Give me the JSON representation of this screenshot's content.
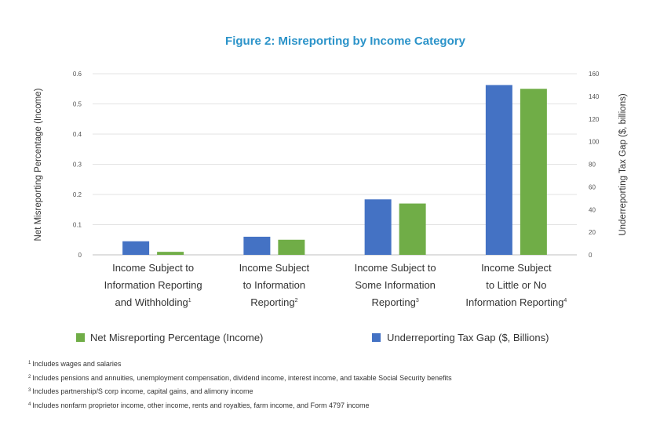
{
  "chart_data": {
    "type": "bar",
    "title": "Figure 2: Misreporting by Income Category",
    "categories": [
      {
        "lines": [
          "Income Subject to",
          "Information Reporting",
          "and Withholding"
        ],
        "note": "1"
      },
      {
        "lines": [
          "Income Subject",
          "to Information",
          "Reporting"
        ],
        "note": "2"
      },
      {
        "lines": [
          "Income Subject to",
          "Some Information",
          "Reporting"
        ],
        "note": "3"
      },
      {
        "lines": [
          "Income Subject",
          "to Little or No",
          "Information Reporting"
        ],
        "note": "4"
      }
    ],
    "series": [
      {
        "name": "Underreporting Tax Gap ($, Billions)",
        "axis": "right",
        "color": "#4472c4",
        "values": [
          12,
          16,
          49,
          150
        ]
      },
      {
        "name": "Net Misreporting Percentage (Income)",
        "axis": "left",
        "color": "#70ad47",
        "values": [
          0.01,
          0.05,
          0.17,
          0.55
        ]
      }
    ],
    "ylabel": "Net Misreporting Percentage (Income)",
    "ylim": [
      0,
      0.6
    ],
    "yticks": [
      "0",
      "0.1",
      "0.2",
      "0.3",
      "0.4",
      "0.5",
      "0.6"
    ],
    "y2label": "Underreporting Tax Gap ($, billions)",
    "y2lim": [
      0,
      160
    ],
    "y2ticks": [
      "0",
      "20",
      "40",
      "60",
      "80",
      "100",
      "120",
      "140",
      "160"
    ],
    "grid": true,
    "legend_position": "bottom",
    "legend_order": [
      1,
      0
    ]
  },
  "footnotes": [
    {
      "num": "1",
      "text": "Includes wages and salaries"
    },
    {
      "num": "2",
      "text": "Includes pensions and annuities, unemployment compensation, dividend income, interest income, and taxable Social Security benefits"
    },
    {
      "num": "3",
      "text": "Includes partnership/S corp income, capital gains, and alimony income"
    },
    {
      "num": "4",
      "text": "Includes nonfarm proprietor income, other income, rents and royalties, farm income, and Form 4797 income"
    }
  ]
}
